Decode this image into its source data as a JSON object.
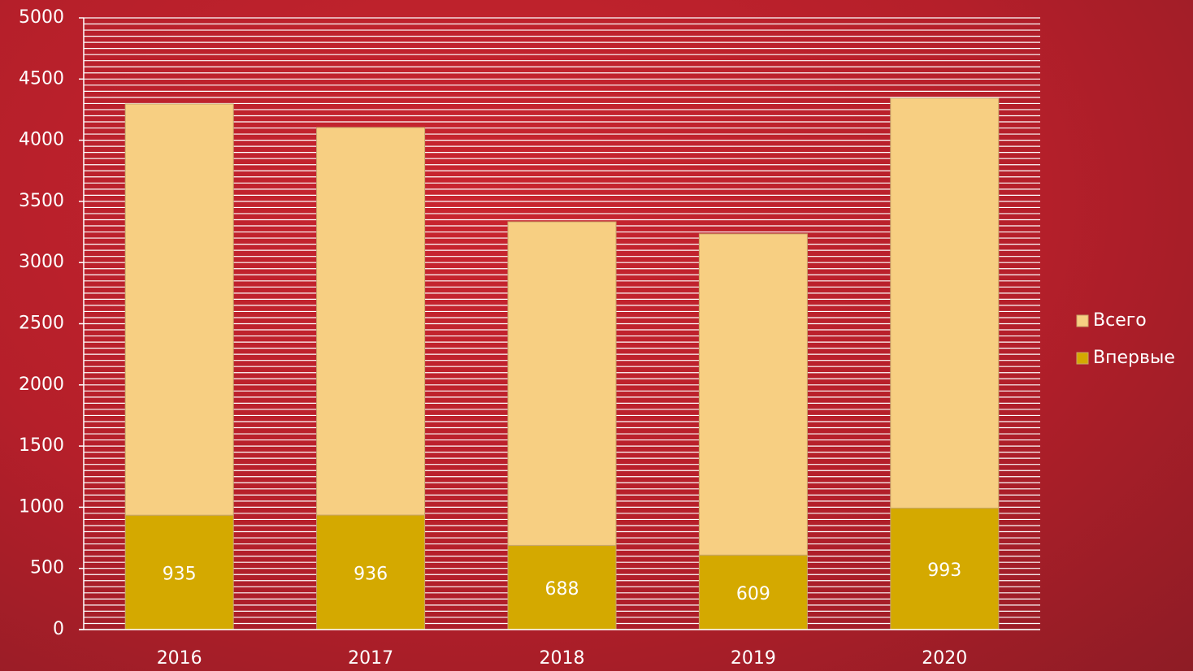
{
  "chart_data": {
    "type": "stacked_bar",
    "categories": [
      "2016",
      "2017",
      "2018",
      "2019",
      "2020"
    ],
    "series": [
      {
        "name": "Впервые",
        "color": "#d4a900",
        "values": [
          935,
          936,
          688,
          609,
          993
        ]
      },
      {
        "name": "Всего",
        "color": "#f7cf82",
        "values": [
          3361,
          3168,
          2645,
          2625,
          3350
        ]
      }
    ],
    "ylim": [
      0,
      5000
    ],
    "yticks": [
      0,
      500,
      1000,
      1500,
      2000,
      2500,
      3000,
      3500,
      4000,
      4500,
      5000
    ],
    "minor_yticks": [
      0,
      50,
      100,
      150,
      200,
      250,
      300,
      350,
      400,
      450,
      500,
      550,
      600,
      650,
      700,
      750,
      800,
      850,
      900,
      950,
      1000,
      1050,
      1100,
      1150,
      1200,
      1250,
      1300,
      1350,
      1400,
      1450,
      1500,
      1550,
      1600,
      1650,
      1700,
      1750,
      1800,
      1850,
      1900,
      1950,
      2000,
      2050,
      2100,
      2150,
      2200,
      2250,
      2300,
      2350,
      2400,
      2450,
      2500,
      2550,
      2600,
      2650,
      2700,
      2750,
      2800,
      2850,
      2900,
      2950,
      3000,
      3050,
      3100,
      3150,
      3200,
      3250,
      3300,
      3350,
      3400,
      3450,
      3500,
      3550,
      3600,
      3650,
      3700,
      3750,
      3800,
      3850,
      3900,
      3950,
      4000,
      4050,
      4100,
      4150,
      4200,
      4250,
      4300,
      4350,
      4400,
      4450,
      4500,
      4550,
      4600,
      4650,
      4700,
      4750,
      4800,
      4850,
      4900,
      4950,
      5000
    ],
    "grid": true,
    "legend": "right",
    "data_labels_series": 0
  }
}
